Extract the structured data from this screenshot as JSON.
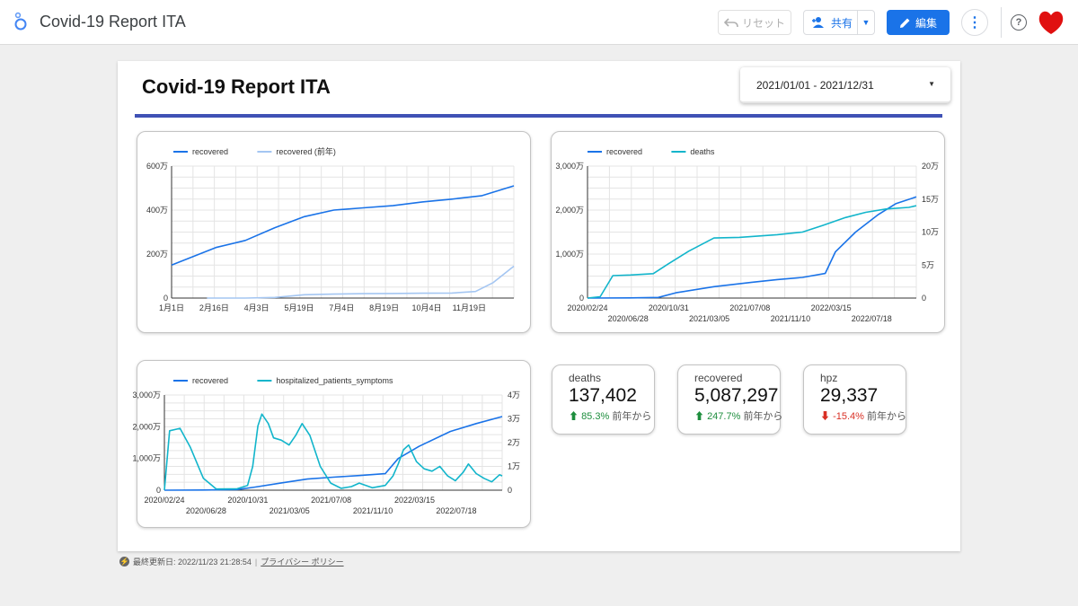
{
  "app": {
    "title": "Covid-19 Report ITA",
    "reset_label": "リセット",
    "share_label": "共有",
    "edit_label": "編集",
    "help_symbol": "?",
    "more_symbol": "⋮",
    "colors": {
      "accent": "#1a73e8",
      "title_rule": "#3f51b5"
    }
  },
  "report": {
    "title": "Covid-19 Report ITA",
    "date_range": "2021/01/01 - 2021/12/31"
  },
  "chart_data": [
    {
      "type": "line",
      "legend_position": "top-left",
      "series": [
        {
          "name": "recovered",
          "color": "#1a73e8",
          "points": [
            [
              0,
              150
            ],
            [
              1.5,
              230
            ],
            [
              2.5,
              262
            ],
            [
              3.5,
              320
            ],
            [
              4.5,
              370
            ],
            [
              5.5,
              400
            ],
            [
              6.5,
              410
            ],
            [
              7.5,
              420
            ],
            [
              8.5,
              437
            ],
            [
              9.5,
              450
            ],
            [
              10.5,
              465
            ],
            [
              11.6,
              510
            ]
          ]
        },
        {
          "name": "recovered (前年)",
          "color": "#a4c6f2",
          "points": [
            [
              1.2,
              0
            ],
            [
              2.5,
              0
            ],
            [
              3.5,
              3
            ],
            [
              4.5,
              15
            ],
            [
              5.5,
              18
            ],
            [
              6.5,
              20
            ],
            [
              7.5,
              21
            ],
            [
              8.5,
              22
            ],
            [
              9.5,
              23
            ],
            [
              10.3,
              30
            ],
            [
              10.9,
              70
            ],
            [
              11.6,
              145
            ]
          ]
        }
      ],
      "x_ticks": [
        "1月1日",
        "2月16日",
        "4月3日",
        "5月19日",
        "7月4日",
        "8月19日",
        "10月4日",
        "11月19日"
      ],
      "y_ticks": [
        "0",
        "200万",
        "400万",
        "600万"
      ],
      "ylim": [
        0,
        600
      ],
      "grid": true
    },
    {
      "type": "line",
      "legend_position": "top-left",
      "series": [
        {
          "name": "recovered",
          "axis": "left",
          "color": "#1a73e8",
          "points": [
            [
              0,
              0
            ],
            [
              1.7,
              5
            ],
            [
              2.8,
              15
            ],
            [
              3.5,
              120
            ],
            [
              5.0,
              260
            ],
            [
              6.5,
              360
            ],
            [
              7.5,
              420
            ],
            [
              8.5,
              470
            ],
            [
              9.4,
              560
            ],
            [
              9.8,
              1050
            ],
            [
              10.6,
              1500
            ],
            [
              11.5,
              1900
            ],
            [
              12.2,
              2150
            ],
            [
              13.0,
              2300
            ]
          ]
        },
        {
          "name": "deaths",
          "axis": "right",
          "color": "#12b5cb",
          "points": [
            [
              0,
              0
            ],
            [
              0.5,
              2000
            ],
            [
              1.0,
              34000
            ],
            [
              1.7,
              35000
            ],
            [
              2.6,
              37000
            ],
            [
              3.2,
              52000
            ],
            [
              4.0,
              71000
            ],
            [
              5.0,
              91000
            ],
            [
              6.0,
              92000
            ],
            [
              7.5,
              96000
            ],
            [
              8.5,
              100000
            ],
            [
              9.3,
              110000
            ],
            [
              10.2,
              122000
            ],
            [
              11.0,
              130000
            ],
            [
              11.8,
              135000
            ],
            [
              12.7,
              137402
            ],
            [
              13.0,
              140000
            ]
          ]
        }
      ],
      "x_ticks_upper": [
        "2020/02/24",
        "2020/10/31",
        "2021/07/08",
        "2022/03/15"
      ],
      "x_ticks_lower": [
        "2020/06/28",
        "2021/03/05",
        "2021/11/10",
        "2022/07/18"
      ],
      "y_left_ticks": [
        "0",
        "1,000万",
        "2,000万",
        "3,000万"
      ],
      "y_right_ticks": [
        "0",
        "5万",
        "10万",
        "15万",
        "20万"
      ],
      "ylim_left": [
        0,
        3000
      ],
      "ylim_right": [
        0,
        200000
      ],
      "grid": true
    },
    {
      "type": "line",
      "legend_position": "top-left",
      "series": [
        {
          "name": "recovered",
          "axis": "left",
          "color": "#1a73e8",
          "points": [
            [
              0,
              0
            ],
            [
              1.5,
              5
            ],
            [
              2.8,
              20
            ],
            [
              3.5,
              100
            ],
            [
              4.5,
              230
            ],
            [
              5.5,
              350
            ],
            [
              6.5,
              410
            ],
            [
              7.5,
              460
            ],
            [
              8.5,
              520
            ],
            [
              9.0,
              1000
            ],
            [
              9.8,
              1380
            ],
            [
              11.0,
              1850
            ],
            [
              12.0,
              2100
            ],
            [
              13.0,
              2320
            ]
          ]
        },
        {
          "name": "hospitalized_patients_symptoms",
          "axis": "right",
          "color": "#12b5cb",
          "points": [
            [
              0,
              0
            ],
            [
              0.2,
              25000
            ],
            [
              0.6,
              26000
            ],
            [
              1.0,
              18000
            ],
            [
              1.5,
              5000
            ],
            [
              2.0,
              500
            ],
            [
              2.8,
              600
            ],
            [
              3.2,
              2000
            ],
            [
              3.4,
              10000
            ],
            [
              3.6,
              27000
            ],
            [
              3.75,
              32000
            ],
            [
              4.0,
              28000
            ],
            [
              4.2,
              22000
            ],
            [
              4.5,
              21000
            ],
            [
              4.8,
              19000
            ],
            [
              5.05,
              23000
            ],
            [
              5.3,
              28000
            ],
            [
              5.6,
              23000
            ],
            [
              6.0,
              10000
            ],
            [
              6.4,
              3000
            ],
            [
              6.8,
              800
            ],
            [
              7.2,
              1500
            ],
            [
              7.5,
              3000
            ],
            [
              8.0,
              1000
            ],
            [
              8.5,
              2000
            ],
            [
              8.8,
              6000
            ],
            [
              9.0,
              11000
            ],
            [
              9.2,
              17000
            ],
            [
              9.4,
              19000
            ],
            [
              9.7,
              12000
            ],
            [
              10.0,
              9000
            ],
            [
              10.3,
              8000
            ],
            [
              10.6,
              10000
            ],
            [
              10.9,
              6000
            ],
            [
              11.2,
              4000
            ],
            [
              11.5,
              7500
            ],
            [
              11.7,
              11000
            ],
            [
              12.0,
              7000
            ],
            [
              12.3,
              5000
            ],
            [
              12.6,
              3500
            ],
            [
              12.9,
              6500
            ],
            [
              13.0,
              6000
            ]
          ]
        }
      ],
      "x_ticks_upper": [
        "2020/02/24",
        "2020/10/31",
        "2021/07/08",
        "2022/03/15"
      ],
      "x_ticks_lower": [
        "2020/06/28",
        "2021/03/05",
        "2021/11/10",
        "2022/07/18"
      ],
      "y_left_ticks": [
        "0",
        "1,000万",
        "2,000万",
        "3,000万"
      ],
      "y_right_ticks": [
        "0",
        "1万",
        "2万",
        "3万",
        "4万"
      ],
      "ylim_left": [
        0,
        3000
      ],
      "ylim_right": [
        0,
        40000
      ],
      "grid": true
    }
  ],
  "kpis": [
    {
      "label": "deaths",
      "value": "137,402",
      "arrow": "⬆",
      "change": "85.3%",
      "direction": "up",
      "suffix": "前年から"
    },
    {
      "label": "recovered",
      "value": "5,087,297",
      "arrow": "⬆",
      "change": "247.7%",
      "direction": "up",
      "suffix": "前年から"
    },
    {
      "label": "hpz",
      "value": "29,337",
      "arrow": "⬇",
      "change": "-15.4%",
      "direction": "down",
      "suffix": "前年から"
    }
  ],
  "footer": {
    "icon": "bolt-icon",
    "updated": "最終更新日: 2022/11/23 21:28:54",
    "separator": "|",
    "privacy_link": "プライバシー ポリシー"
  }
}
